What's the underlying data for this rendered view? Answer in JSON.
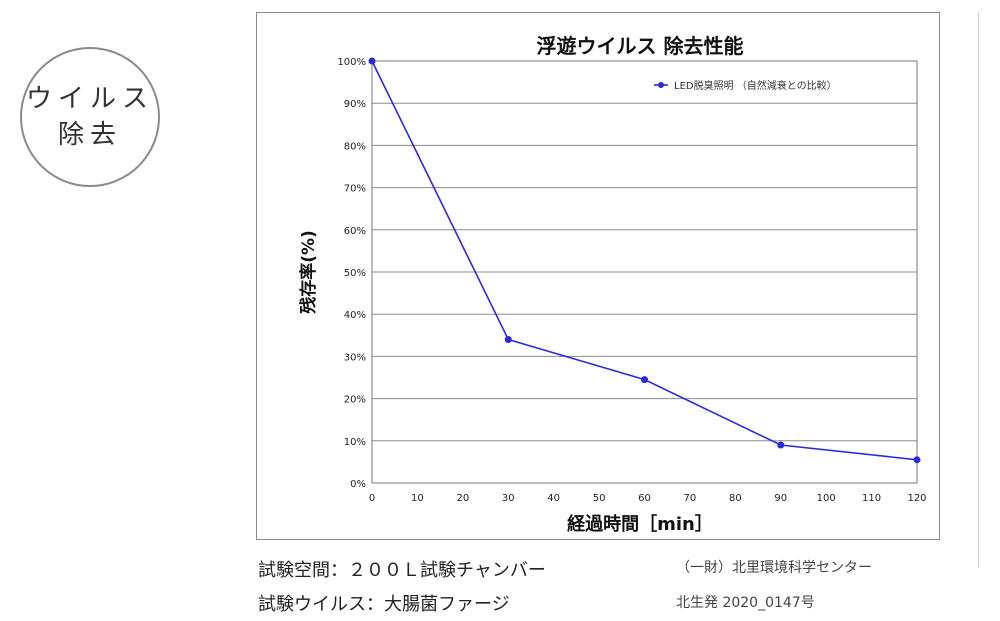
{
  "badge": {
    "line1": "ウイルス",
    "line2": "除去"
  },
  "chart_data": {
    "type": "line",
    "title": "浮遊ウイルス 除去性能",
    "xlabel": "経過時間［min］",
    "ylabel": "残存率(%)",
    "x": [
      0,
      30,
      60,
      90,
      120
    ],
    "series": [
      {
        "name": "LED脱臭照明 （自然減衰との比較）",
        "values": [
          100,
          34,
          24.5,
          9,
          5.5
        ],
        "color": "#2a2adc"
      }
    ],
    "xlim": [
      0,
      120
    ],
    "xticks": [
      "0",
      "10",
      "20",
      "30",
      "40",
      "50",
      "60",
      "70",
      "80",
      "90",
      "100",
      "110",
      "120"
    ],
    "ylim": [
      0,
      100
    ],
    "yticks": [
      "0%",
      "10%",
      "20%",
      "30%",
      "40%",
      "50%",
      "60%",
      "70%",
      "80%",
      "90%",
      "100%"
    ],
    "grid": true,
    "legend": "top-right"
  },
  "captions": {
    "space": "試験空間：２００Ｌ試験チャンバー",
    "virus": "試験ウイルス：大腸菌ファージ",
    "org": "（一財）北里環境科学センター",
    "report": "北生発 2020_0147号"
  }
}
